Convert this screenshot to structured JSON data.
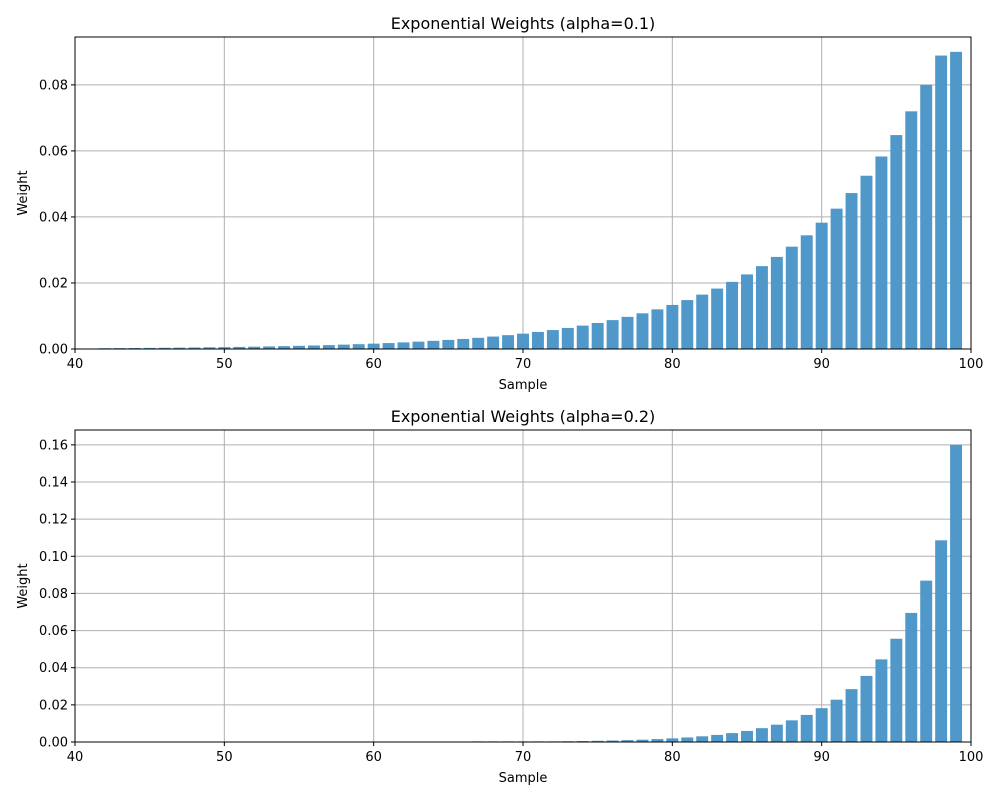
{
  "colors": {
    "bar": "#4c96c8",
    "grid": "#b0b0b0",
    "frame": "#000000"
  },
  "chart_data": [
    {
      "type": "bar",
      "title": "Exponential Weights (alpha=0.1)",
      "xlabel": "Sample",
      "ylabel": "Weight",
      "xlim": [
        40,
        100
      ],
      "ylim": [
        0,
        0.0945
      ],
      "xticks": [
        40,
        50,
        60,
        70,
        80,
        90,
        100
      ],
      "xtick_labels": [
        "40",
        "50",
        "60",
        "70",
        "80",
        "90",
        "100"
      ],
      "yticks": [
        0.0,
        0.02,
        0.04,
        0.06,
        0.08
      ],
      "ytick_labels": [
        "0.00",
        "0.02",
        "0.04",
        "0.06",
        "0.08"
      ],
      "grid": true,
      "x": [
        42,
        43,
        44,
        45,
        46,
        47,
        48,
        49,
        50,
        51,
        52,
        53,
        54,
        55,
        56,
        57,
        58,
        59,
        60,
        61,
        62,
        63,
        64,
        65,
        66,
        67,
        68,
        69,
        70,
        71,
        72,
        73,
        74,
        75,
        76,
        77,
        78,
        79,
        80,
        81,
        82,
        83,
        84,
        85,
        86,
        87,
        88,
        89,
        90,
        91,
        92,
        93,
        94,
        95,
        96,
        97,
        98,
        99
      ],
      "values": [
        0.00024,
        0.00027,
        0.0003,
        0.00033,
        0.00037,
        0.00041,
        0.00046,
        0.00051,
        0.00057,
        0.00063,
        0.0007,
        0.00078,
        0.00086,
        0.00096,
        0.00107,
        0.00118,
        0.00132,
        0.00146,
        0.00162,
        0.0018,
        0.002,
        0.00223,
        0.00247,
        0.00275,
        0.00305,
        0.00339,
        0.00377,
        0.00419,
        0.00465,
        0.00517,
        0.00574,
        0.00638,
        0.00709,
        0.00788,
        0.00875,
        0.00973,
        0.01081,
        0.01201,
        0.01334,
        0.01482,
        0.01647,
        0.0183,
        0.02033,
        0.02259,
        0.0251,
        0.02789,
        0.03099,
        0.03443,
        0.03826,
        0.04251,
        0.04723,
        0.05248,
        0.05831,
        0.06479,
        0.07199,
        0.07999,
        0.08888,
        0.09
      ]
    },
    {
      "type": "bar",
      "title": "Exponential Weights (alpha=0.2)",
      "xlabel": "Sample",
      "ylabel": "Weight",
      "xlim": [
        40,
        100
      ],
      "ylim": [
        0,
        0.168
      ],
      "xticks": [
        40,
        50,
        60,
        70,
        80,
        90,
        100
      ],
      "xtick_labels": [
        "40",
        "50",
        "60",
        "70",
        "80",
        "90",
        "100"
      ],
      "yticks": [
        0.0,
        0.02,
        0.04,
        0.06,
        0.08,
        0.1,
        0.12,
        0.14,
        0.16
      ],
      "ytick_labels": [
        "0.00",
        "0.02",
        "0.04",
        "0.06",
        "0.08",
        "0.10",
        "0.12",
        "0.14",
        "0.16"
      ],
      "grid": true,
      "x": [
        67,
        68,
        69,
        70,
        71,
        72,
        73,
        74,
        75,
        76,
        77,
        78,
        79,
        80,
        81,
        82,
        83,
        84,
        85,
        86,
        87,
        88,
        89,
        90,
        91,
        92,
        93,
        94,
        95,
        96,
        97,
        98,
        99
      ],
      "values": [
        0.00011,
        0.00013,
        0.00017,
        0.00021,
        0.00026,
        0.00033,
        0.00041,
        0.00051,
        0.00064,
        0.0008,
        0.001,
        0.00125,
        0.00157,
        0.00196,
        0.00245,
        0.00306,
        0.00382,
        0.00478,
        0.00597,
        0.00746,
        0.00933,
        0.01166,
        0.01458,
        0.01822,
        0.02278,
        0.02847,
        0.03559,
        0.04449,
        0.05561,
        0.06951,
        0.08689,
        0.10861,
        0.16
      ]
    }
  ]
}
